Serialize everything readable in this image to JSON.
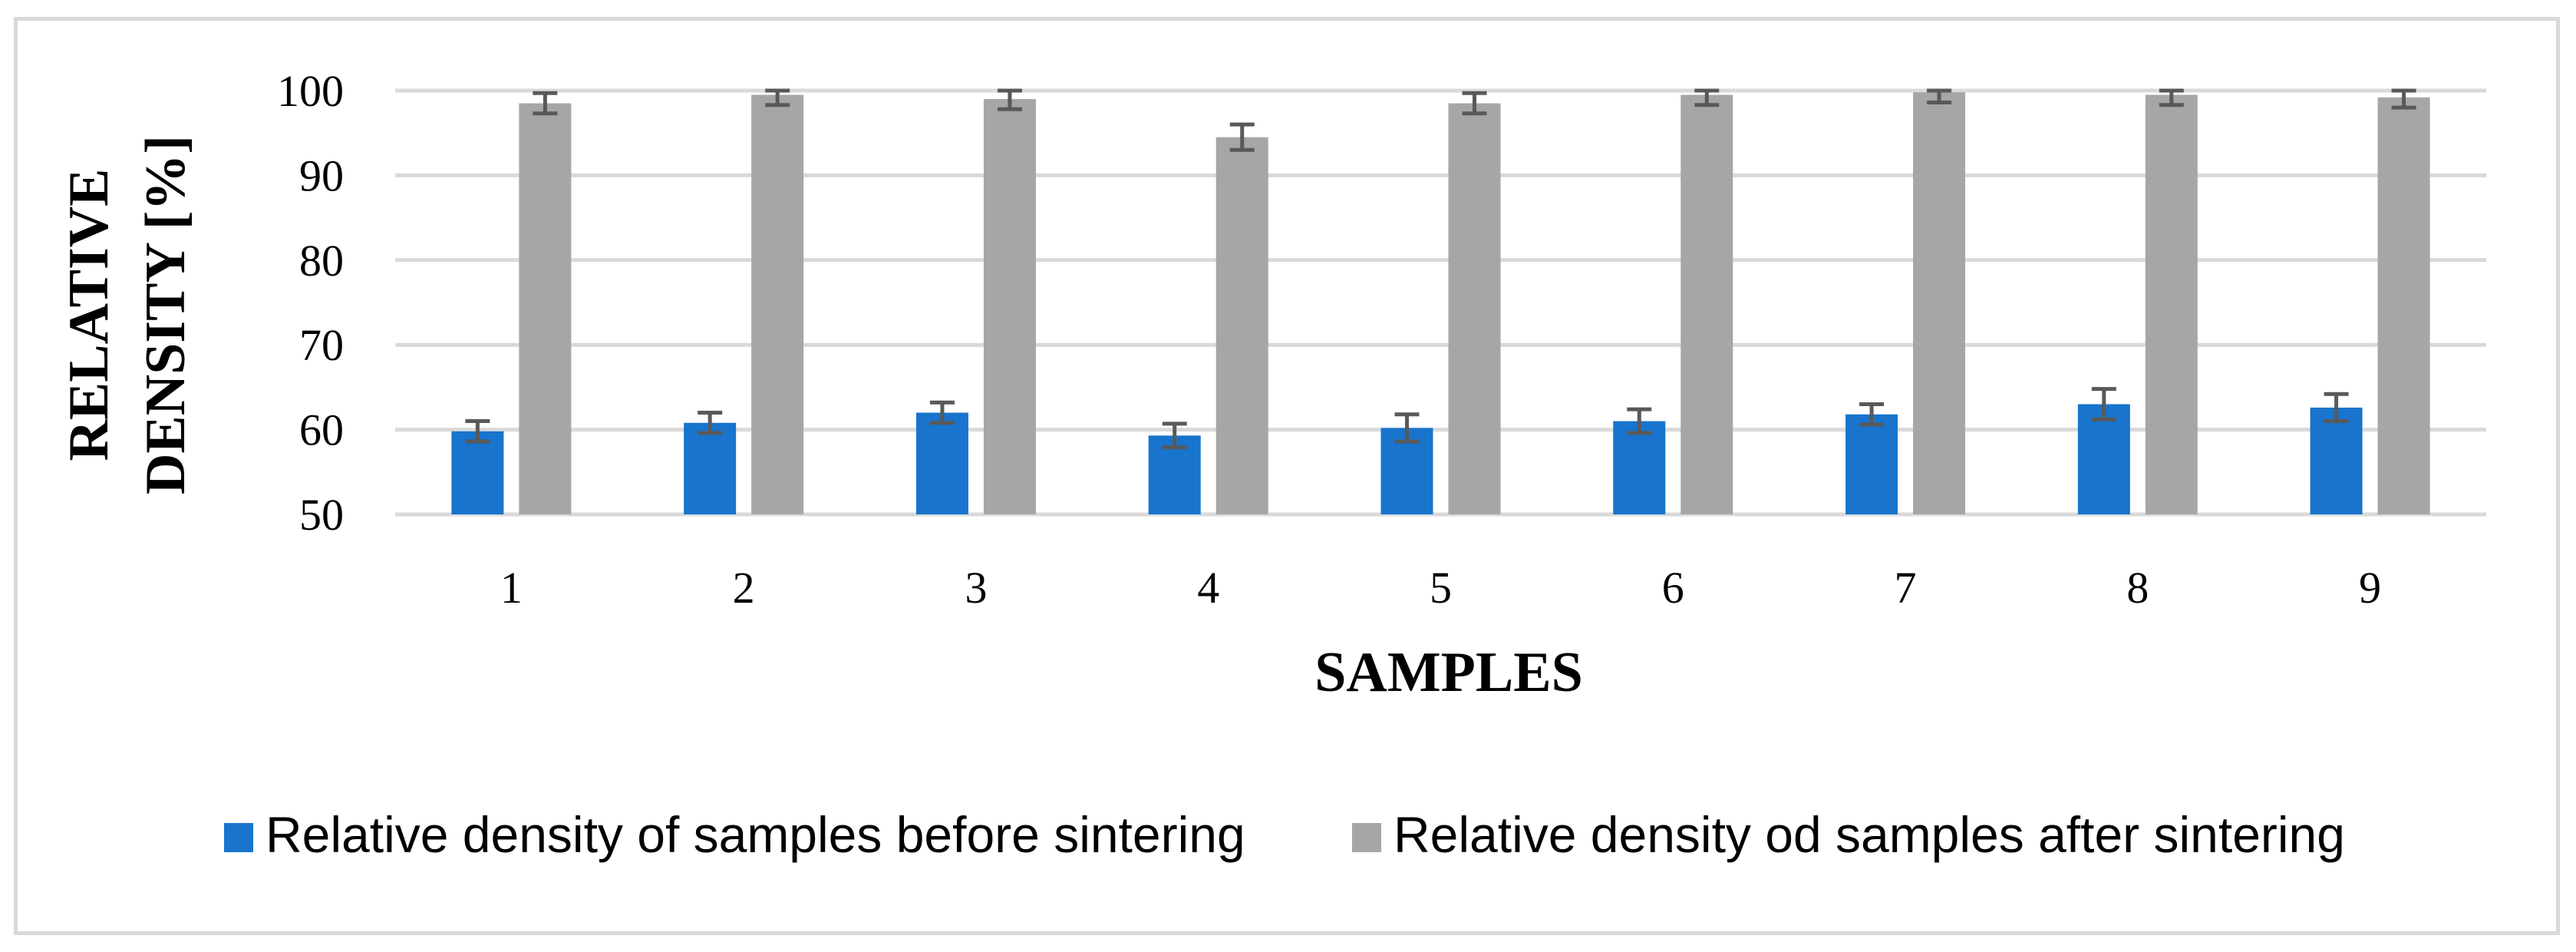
{
  "chart_data": {
    "type": "bar",
    "title": "",
    "xlabel": "SAMPLES",
    "ylabel_lines": [
      "RELATIVE",
      "DENSITY [%]"
    ],
    "ylim": [
      50,
      100
    ],
    "yticks": [
      50,
      60,
      70,
      80,
      90,
      100
    ],
    "categories": [
      "1",
      "2",
      "3",
      "4",
      "5",
      "6",
      "7",
      "8",
      "9"
    ],
    "grid": true,
    "legend_position": "bottom",
    "series": [
      {
        "name": "Relative density of samples before sintering",
        "color": "#1874cd",
        "values": [
          59.8,
          60.8,
          62.0,
          59.3,
          60.2,
          61.0,
          61.8,
          63.0,
          62.6
        ],
        "error": [
          1.2,
          1.2,
          1.2,
          1.4,
          1.6,
          1.4,
          1.2,
          1.8,
          1.6
        ]
      },
      {
        "name": "Relative density od samples after sintering",
        "color": "#a6a6a6",
        "values": [
          98.5,
          99.5,
          99.0,
          94.5,
          98.5,
          99.5,
          99.8,
          99.5,
          99.2
        ],
        "error": [
          1.2,
          1.2,
          1.2,
          1.5,
          1.2,
          1.2,
          1.2,
          1.2,
          1.2
        ]
      }
    ]
  }
}
